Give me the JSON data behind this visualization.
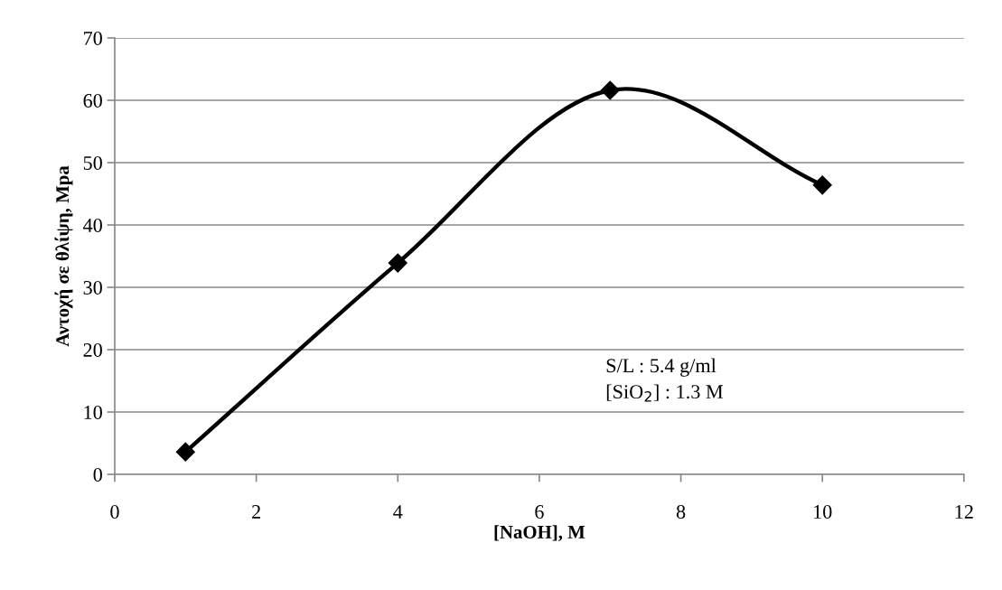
{
  "chart_data": {
    "type": "line",
    "xlabel": "[NaOH], M",
    "ylabel": "Αντοχή σε θλίψη, Mpa",
    "x": [
      1,
      4,
      7,
      10
    ],
    "series": [
      {
        "color": "#000000",
        "values": [
          3.6,
          33.9,
          61.6,
          46.4
        ]
      }
    ],
    "xlim": [
      0,
      12
    ],
    "xticks": [
      0,
      2,
      4,
      6,
      8,
      10,
      12
    ],
    "ylim": [
      0,
      70
    ],
    "yticks": [
      0,
      10,
      20,
      30,
      40,
      50,
      60,
      70
    ],
    "grid": "y",
    "legend": false,
    "marker": "diamond",
    "line_style": "solid",
    "annotations": [
      "S/L : 5.4 g/ml",
      "[SiO$_{2}$] : 1.3 M"
    ]
  }
}
